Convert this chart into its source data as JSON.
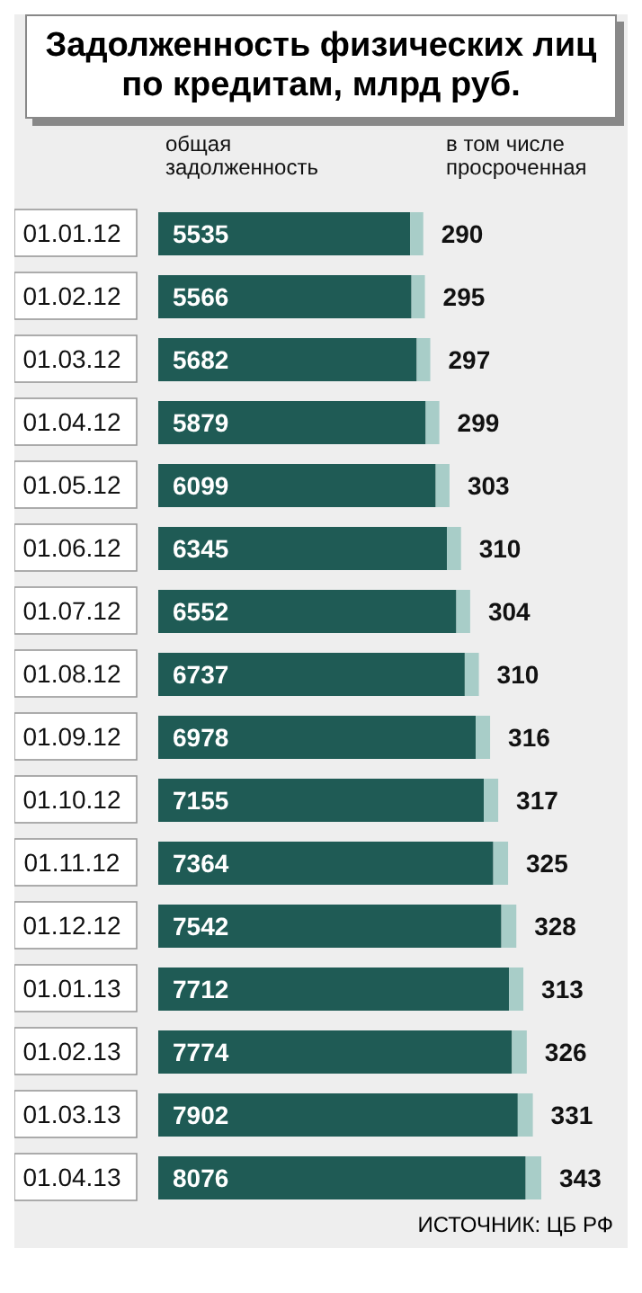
{
  "chart_data": {
    "type": "bar",
    "orientation": "horizontal",
    "stacked": true,
    "title": "Задолженность физических лиц по кредитам, млрд руб.",
    "categories": [
      "01.01.12",
      "01.02.12",
      "01.03.12",
      "01.04.12",
      "01.05.12",
      "01.06.12",
      "01.07.12",
      "01.08.12",
      "01.09.12",
      "01.10.12",
      "01.11.12",
      "01.12.12",
      "01.01.13",
      "01.02.13",
      "01.03.13",
      "01.04.13"
    ],
    "series": [
      {
        "name": "общая задолженность",
        "color": "#1f5b55",
        "values": [
          5535,
          5566,
          5682,
          5879,
          6099,
          6345,
          6552,
          6737,
          6978,
          7155,
          7364,
          7542,
          7712,
          7774,
          7902,
          8076
        ]
      },
      {
        "name": "в том числе просроченная",
        "color": "#a8cdc8",
        "values": [
          290,
          295,
          297,
          299,
          303,
          310,
          304,
          310,
          316,
          317,
          325,
          328,
          313,
          326,
          331,
          343
        ]
      }
    ],
    "tick_labels": "y",
    "data_labels": true,
    "grid": false,
    "legend": "top",
    "annotations": [
      "ИСТОЧНИК: ЦБ РФ"
    ]
  }
}
